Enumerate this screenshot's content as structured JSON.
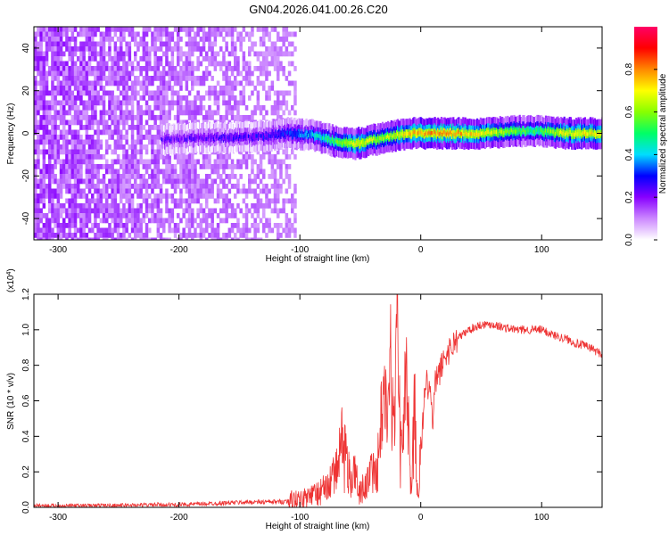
{
  "title": "GN04.2026.041.00.26.C20",
  "chart_data": [
    {
      "type": "heatmap",
      "xlabel": "Height of straight line (km)",
      "ylabel": "Frequency (Hz)",
      "xlim": [
        -320,
        150
      ],
      "ylim": [
        -50,
        50
      ],
      "xticks": [
        -300,
        -200,
        -100,
        0,
        100
      ],
      "yticks": [
        -40,
        -20,
        0,
        20,
        40
      ],
      "grid": false,
      "colorbar": {
        "label": "Normalized spectral amplitude",
        "range": [
          0,
          1
        ],
        "ticks": [
          0.0,
          0.2,
          0.4,
          0.6,
          0.8
        ],
        "colors": [
          "#ffffff",
          "#cc88ff",
          "#8800ff",
          "#0000ff",
          "#00ddff",
          "#00ff66",
          "#88ff00",
          "#ffff00",
          "#ff8800",
          "#ff0000",
          "#ff0066"
        ]
      },
      "noise_region": {
        "x_range": [
          -320,
          -105
        ],
        "y_range": [
          -50,
          50
        ]
      },
      "ridge": [
        {
          "x": -215,
          "freq": -3,
          "amplitude": 0.2
        },
        {
          "x": -180,
          "freq": -2,
          "amplitude": 0.22
        },
        {
          "x": -140,
          "freq": -2,
          "amplitude": 0.25
        },
        {
          "x": -110,
          "freq": 0,
          "amplitude": 0.3
        },
        {
          "x": -90,
          "freq": -1,
          "amplitude": 0.4
        },
        {
          "x": -70,
          "freq": -4,
          "amplitude": 0.55
        },
        {
          "x": -55,
          "freq": -5,
          "amplitude": 0.7
        },
        {
          "x": -30,
          "freq": -2,
          "amplitude": 0.6
        },
        {
          "x": -10,
          "freq": 0,
          "amplitude": 0.75
        },
        {
          "x": 20,
          "freq": 0,
          "amplitude": 0.8
        },
        {
          "x": 50,
          "freq": 0,
          "amplitude": 0.7
        },
        {
          "x": 80,
          "freq": 1,
          "amplitude": 0.55
        },
        {
          "x": 95,
          "freq": 1,
          "amplitude": 0.5
        },
        {
          "x": 120,
          "freq": 0,
          "amplitude": 0.7
        },
        {
          "x": 150,
          "freq": 0,
          "amplitude": 0.7
        }
      ]
    },
    {
      "type": "line",
      "xlabel": "Height of straight line (km)",
      "ylabel": "SNR (10 * v/v)",
      "y_multiplier": "(x10^4)",
      "xlim": [
        -320,
        150
      ],
      "ylim": [
        0,
        1.2
      ],
      "xticks": [
        -300,
        -200,
        -100,
        0,
        100
      ],
      "yticks": [
        0.0,
        0.2,
        0.4,
        0.6,
        0.8,
        1.0,
        1.2
      ],
      "grid": false,
      "series": [
        {
          "color": "#ee3333",
          "x": [
            -320,
            -300,
            -280,
            -250,
            -220,
            -200,
            -180,
            -160,
            -140,
            -120,
            -110,
            -100,
            -90,
            -80,
            -70,
            -65,
            -62,
            -58,
            -55,
            -50,
            -45,
            -40,
            -35,
            -30,
            -27,
            -25,
            -22,
            -20,
            -18,
            -15,
            -12,
            -10,
            -8,
            -5,
            -3,
            0,
            3,
            5,
            8,
            10,
            12,
            15,
            20,
            25,
            30,
            40,
            50,
            60,
            70,
            80,
            90,
            100,
            110,
            120,
            130,
            140,
            150
          ],
          "values": [
            0.01,
            0.01,
            0.01,
            0.012,
            0.015,
            0.015,
            0.02,
            0.025,
            0.03,
            0.03,
            0.035,
            0.04,
            0.06,
            0.1,
            0.2,
            0.4,
            0.3,
            0.15,
            0.2,
            0.08,
            0.15,
            0.2,
            0.3,
            0.8,
            0.5,
            0.9,
            0.4,
            1.2,
            0.6,
            0.3,
            0.85,
            0.4,
            0.1,
            0.6,
            0.05,
            0.3,
            0.6,
            0.7,
            0.65,
            0.45,
            0.7,
            0.75,
            0.85,
            0.9,
            0.95,
            1.0,
            1.03,
            1.03,
            1.01,
            1.0,
            1.0,
            1.0,
            0.97,
            0.95,
            0.92,
            0.9,
            0.86
          ]
        }
      ]
    }
  ]
}
